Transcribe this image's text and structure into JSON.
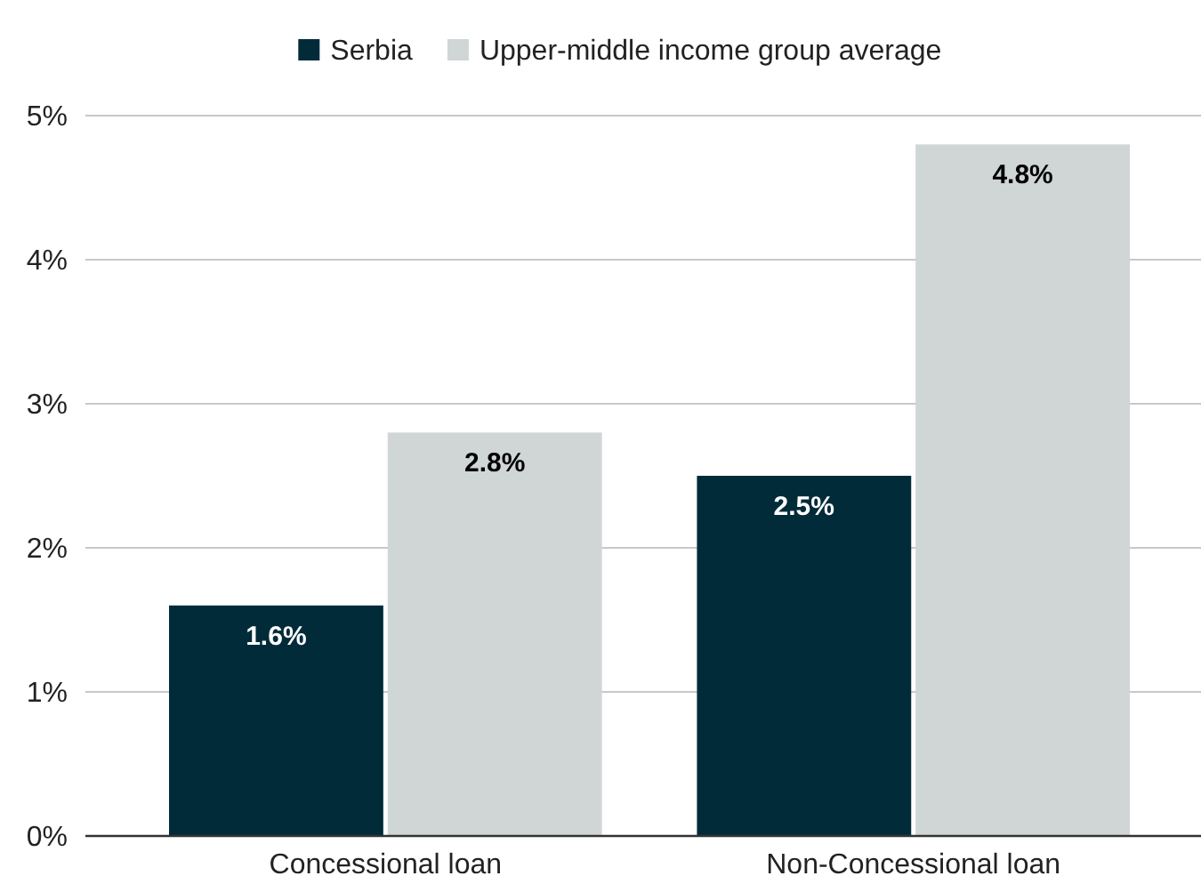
{
  "chart_data": {
    "type": "bar",
    "categories": [
      "Concessional loan",
      "Non-Concessional loan"
    ],
    "series": [
      {
        "name": "Serbia",
        "color": "#022b3a",
        "values": [
          1.6,
          2.5
        ],
        "value_labels": [
          "1.6%",
          "2.5%"
        ]
      },
      {
        "name": "Upper-middle income group average",
        "color": "#d0d5d6",
        "values": [
          2.8,
          4.8
        ],
        "value_labels": [
          "2.8%",
          "4.8%"
        ]
      }
    ],
    "ylim": [
      0,
      5
    ],
    "yticks": [
      {
        "value": 0,
        "label": "0%"
      },
      {
        "value": 1,
        "label": "1%"
      },
      {
        "value": 2,
        "label": "2%"
      },
      {
        "value": 3,
        "label": "3%"
      },
      {
        "value": 4,
        "label": "4%"
      },
      {
        "value": 5,
        "label": "5%"
      }
    ],
    "grid": "y",
    "legend": "top"
  }
}
